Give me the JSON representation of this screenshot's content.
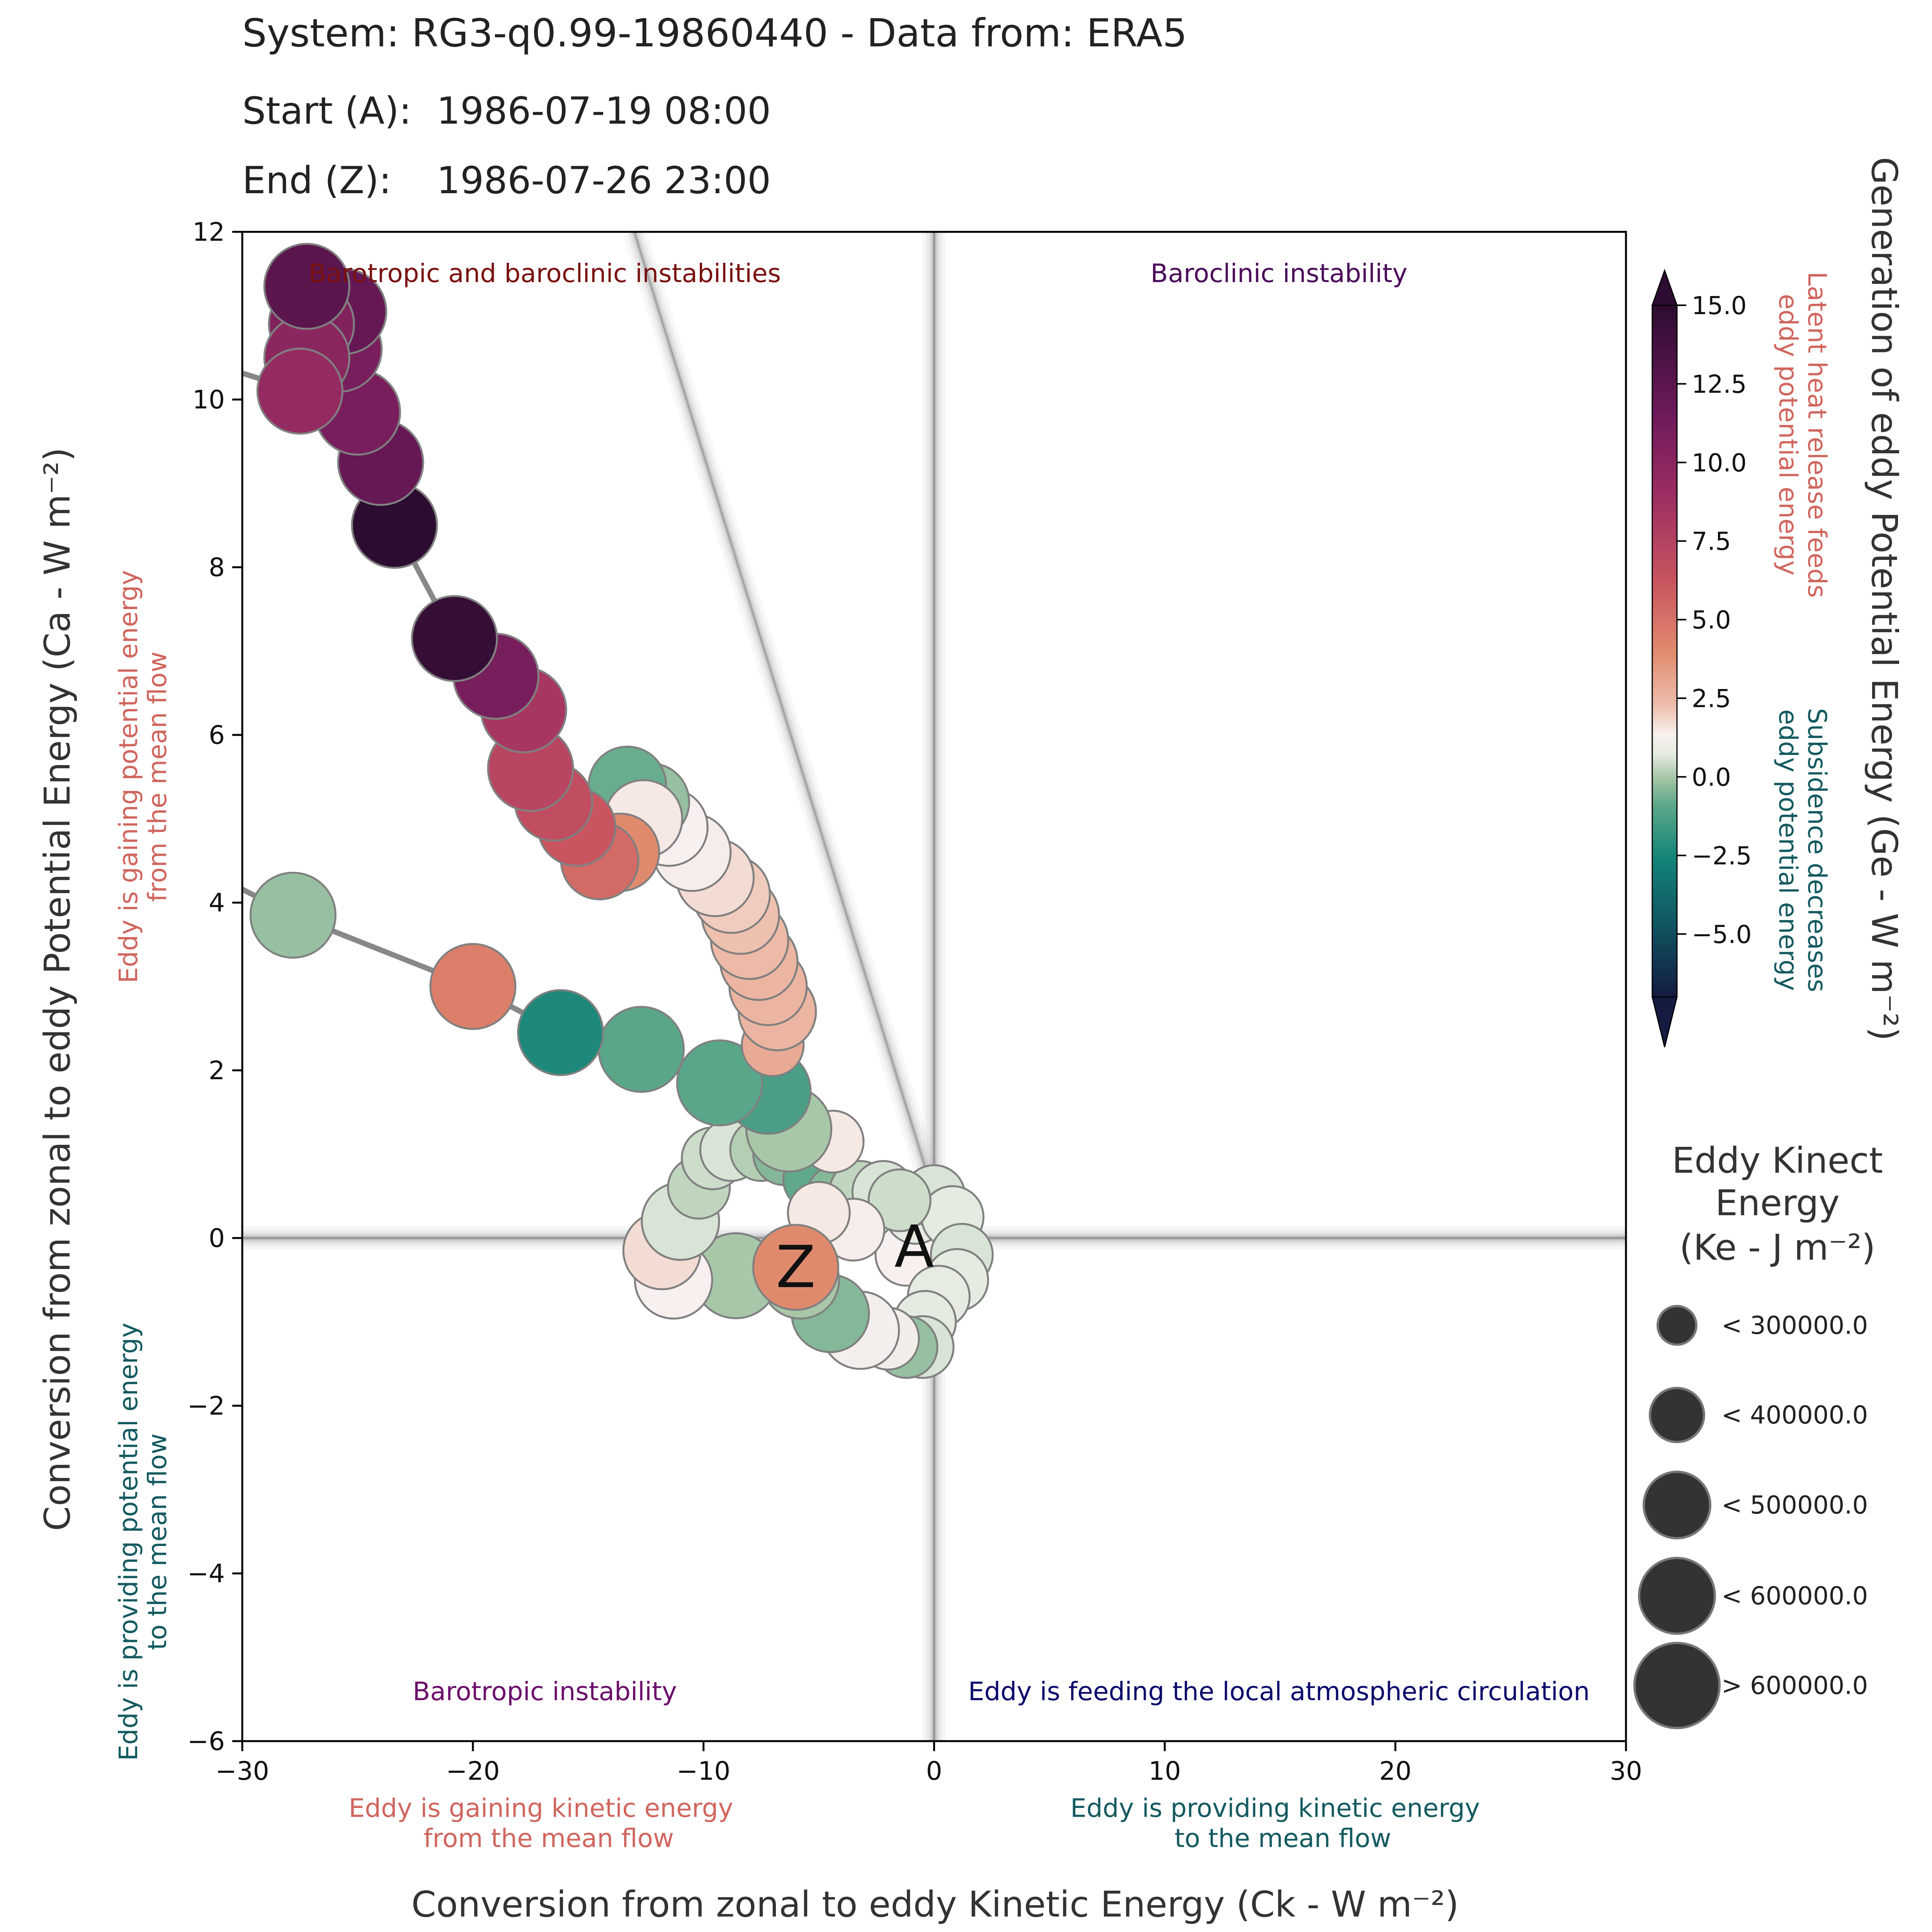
{
  "header": {
    "title": "System: RG3-q0.99-19860440 - Data from: ERA5",
    "start_label": "Start (A):",
    "start_value": "1986-07-19 08:00",
    "end_label": "End (Z):",
    "end_value": "1986-07-26 23:00"
  },
  "chart_data": {
    "type": "scatter",
    "xlabel": "Conversion from zonal to eddy Kinetic Energy (Ck -  W m⁻²)",
    "ylabel": "Conversion from zonal to eddy Potential Energy (Ca -  W m⁻²)",
    "xlim": [
      -30,
      30
    ],
    "ylim": [
      -6,
      12
    ],
    "xticks": [
      -30,
      -20,
      -10,
      0,
      10,
      20,
      30
    ],
    "yticks": [
      -6,
      -4,
      -2,
      0,
      2,
      4,
      6,
      8,
      10,
      12
    ],
    "xtick_labels": [
      "−30",
      "−20",
      "−10",
      "0",
      "10",
      "20",
      "30"
    ],
    "ytick_labels": [
      "−6",
      "−4",
      "−2",
      "0",
      "2",
      "4",
      "6",
      "8",
      "10",
      "12"
    ],
    "quadrant_labels": {
      "top_left": "Barotropic and baroclinic instabilities",
      "top_right": "Baroclinic instability",
      "bottom_left": "Barotropic instability",
      "bottom_right": "Eddy is feeding the local atmospheric circulation"
    },
    "axis_annotations": {
      "x_negative": [
        "Eddy is gaining kinetic energy",
        "from the mean flow"
      ],
      "x_positive": [
        "Eddy is providing kinetic energy",
        "to the mean flow"
      ],
      "y_positive": [
        "Eddy is gaining potential energy",
        "from the mean flow"
      ],
      "y_negative": [
        "Eddy is providing potential energy",
        "to the mean flow"
      ]
    },
    "colorbar": {
      "label": "Generation of eddy Potential Energy (Ge -  W m⁻²)",
      "range": [
        -7,
        15
      ],
      "ticks": [
        15.0,
        12.5,
        10.0,
        7.5,
        5.0,
        2.5,
        0.0,
        -2.5,
        -5.0
      ],
      "tick_labels": [
        "15.0",
        "12.5",
        "10.0",
        "7.5",
        "5.0",
        "2.5",
        "0.0",
        "−2.5",
        "−5.0"
      ],
      "positive_note": [
        "Latent heat release feeds",
        "eddy potential energy"
      ],
      "negative_note": [
        "Subsidence decreases",
        "eddy potential energy"
      ]
    },
    "size_legend": {
      "title": [
        "Eddy Kinect",
        "Energy",
        "(Ke -  J m⁻²)"
      ],
      "entries": [
        "< 300000.0",
        "< 400000.0",
        "< 500000.0",
        "< 600000.0",
        "> 600000.0"
      ]
    },
    "markers": {
      "start": "A",
      "end": "Z",
      "start_point": [
        -1.2,
        -0.2
      ],
      "end_point": [
        -6.0,
        -0.35
      ]
    },
    "colors": {
      "quadrant_top_left": "#7a1010",
      "quadrant_top_right": "#4b0a5a",
      "quadrant_bottom_left": "#6b0f6b",
      "quadrant_bottom_right": "#0a0a6b",
      "positive_note": "#d0665e",
      "negative_note": "#145a60"
    },
    "points": [
      {
        "x": -1.2,
        "y": -0.2,
        "ge": 0.3,
        "size": 2
      },
      {
        "x": -0.8,
        "y": 0.3,
        "ge": -0.2,
        "size": 2
      },
      {
        "x": 0.0,
        "y": 0.5,
        "ge": -0.4,
        "size": 2
      },
      {
        "x": 0.8,
        "y": 0.25,
        "ge": -0.3,
        "size": 2
      },
      {
        "x": 1.2,
        "y": -0.2,
        "ge": -0.4,
        "size": 2
      },
      {
        "x": 1.0,
        "y": -0.5,
        "ge": -0.3,
        "size": 2
      },
      {
        "x": 0.2,
        "y": -0.7,
        "ge": -0.2,
        "size": 2
      },
      {
        "x": -0.4,
        "y": -1.0,
        "ge": -0.3,
        "size": 2
      },
      {
        "x": -0.5,
        "y": -1.3,
        "ge": -0.4,
        "size": 2
      },
      {
        "x": -1.2,
        "y": -1.3,
        "ge": -1.0,
        "size": 2
      },
      {
        "x": -2.0,
        "y": -1.2,
        "ge": 0.1,
        "size": 2
      },
      {
        "x": -3.2,
        "y": -1.1,
        "ge": 0.2,
        "size": 3
      },
      {
        "x": -4.5,
        "y": -0.9,
        "ge": -1.2,
        "size": 3
      },
      {
        "x": -5.8,
        "y": -0.5,
        "ge": -0.8,
        "size": 3
      },
      {
        "x": -8.6,
        "y": -0.45,
        "ge": -0.8,
        "size": 4
      },
      {
        "x": -11.3,
        "y": -0.5,
        "ge": 0.3,
        "size": 3
      },
      {
        "x": -11.8,
        "y": -0.15,
        "ge": 0.8,
        "size": 3
      },
      {
        "x": -11.0,
        "y": 0.2,
        "ge": -0.4,
        "size": 3
      },
      {
        "x": -10.2,
        "y": 0.6,
        "ge": -0.6,
        "size": 2
      },
      {
        "x": -9.6,
        "y": 0.95,
        "ge": -0.5,
        "size": 2
      },
      {
        "x": -8.8,
        "y": 1.05,
        "ge": -0.4,
        "size": 2
      },
      {
        "x": -7.5,
        "y": 1.05,
        "ge": -0.7,
        "size": 2
      },
      {
        "x": -6.5,
        "y": 1.0,
        "ge": -1.2,
        "size": 2
      },
      {
        "x": -5.2,
        "y": 0.7,
        "ge": -1.6,
        "size": 2
      },
      {
        "x": -4.2,
        "y": 0.5,
        "ge": -1.2,
        "size": 2
      },
      {
        "x": -3.2,
        "y": 0.55,
        "ge": -0.6,
        "size": 2
      },
      {
        "x": -2.2,
        "y": 0.55,
        "ge": -0.4,
        "size": 2
      },
      {
        "x": -1.5,
        "y": 0.45,
        "ge": -0.5,
        "size": 2
      },
      {
        "x": -3.5,
        "y": 0.1,
        "ge": 0.4,
        "size": 2
      },
      {
        "x": -5.0,
        "y": 0.3,
        "ge": 0.5,
        "size": 2
      },
      {
        "x": -4.4,
        "y": 1.15,
        "ge": 0.5,
        "size": 2
      },
      {
        "x": -6.3,
        "y": 1.3,
        "ge": -0.8,
        "size": 4
      },
      {
        "x": -7.2,
        "y": 1.75,
        "ge": -2.0,
        "size": 4
      },
      {
        "x": -9.3,
        "y": 1.85,
        "ge": -1.7,
        "size": 4
      },
      {
        "x": -12.7,
        "y": 2.25,
        "ge": -1.7,
        "size": 4
      },
      {
        "x": -16.2,
        "y": 2.45,
        "ge": -2.8,
        "size": 4
      },
      {
        "x": -20.0,
        "y": 3.0,
        "ge": 4.5,
        "size": 4
      },
      {
        "x": -27.8,
        "y": 3.85,
        "ge": -1.0,
        "size": 4
      },
      {
        "x": -7.0,
        "y": 2.3,
        "ge": 2.5,
        "size": 2
      },
      {
        "x": -6.8,
        "y": 2.7,
        "ge": 2.0,
        "size": 3
      },
      {
        "x": -7.2,
        "y": 3.0,
        "ge": 2.0,
        "size": 3
      },
      {
        "x": -7.6,
        "y": 3.3,
        "ge": 2.0,
        "size": 3
      },
      {
        "x": -8.0,
        "y": 3.55,
        "ge": 1.8,
        "size": 3
      },
      {
        "x": -8.4,
        "y": 3.85,
        "ge": 1.5,
        "size": 3
      },
      {
        "x": -8.8,
        "y": 4.1,
        "ge": 1.2,
        "size": 3
      },
      {
        "x": -9.5,
        "y": 4.3,
        "ge": 0.8,
        "size": 3
      },
      {
        "x": -10.5,
        "y": 4.6,
        "ge": 0.4,
        "size": 3
      },
      {
        "x": -11.5,
        "y": 4.9,
        "ge": 0.3,
        "size": 3
      },
      {
        "x": -12.3,
        "y": 5.2,
        "ge": -1.0,
        "size": 3
      },
      {
        "x": -13.3,
        "y": 5.4,
        "ge": -1.5,
        "size": 3
      },
      {
        "x": -12.6,
        "y": 5.0,
        "ge": 0.5,
        "size": 3
      },
      {
        "x": -13.6,
        "y": 4.6,
        "ge": 4.0,
        "size": 3
      },
      {
        "x": -14.5,
        "y": 4.5,
        "ge": 5.5,
        "size": 3
      },
      {
        "x": -15.5,
        "y": 4.9,
        "ge": 6.5,
        "size": 3
      },
      {
        "x": -16.5,
        "y": 5.2,
        "ge": 7.0,
        "size": 3
      },
      {
        "x": -17.5,
        "y": 5.6,
        "ge": 7.5,
        "size": 4
      },
      {
        "x": -17.8,
        "y": 6.3,
        "ge": 8.5,
        "size": 4
      },
      {
        "x": -19.0,
        "y": 6.7,
        "ge": 11.0,
        "size": 4
      },
      {
        "x": -20.8,
        "y": 7.15,
        "ge": 14.5,
        "size": 4
      },
      {
        "x": -23.4,
        "y": 8.5,
        "ge": 15.0,
        "size": 4
      },
      {
        "x": -24.0,
        "y": 9.25,
        "ge": 12.0,
        "size": 4
      },
      {
        "x": -25.0,
        "y": 9.85,
        "ge": 11.0,
        "size": 4
      },
      {
        "x": -25.8,
        "y": 10.6,
        "ge": 11.0,
        "size": 4
      },
      {
        "x": -25.6,
        "y": 11.05,
        "ge": 12.0,
        "size": 4
      },
      {
        "x": -27.0,
        "y": 10.9,
        "ge": 10.5,
        "size": 4
      },
      {
        "x": -27.2,
        "y": 10.5,
        "ge": 10.0,
        "size": 4
      },
      {
        "x": -27.5,
        "y": 10.1,
        "ge": 9.5,
        "size": 4
      },
      {
        "x": -27.2,
        "y": 11.35,
        "ge": 12.5,
        "size": 4
      },
      {
        "x": -6.0,
        "y": -0.35,
        "ge": 4.0,
        "size": 4
      }
    ]
  }
}
